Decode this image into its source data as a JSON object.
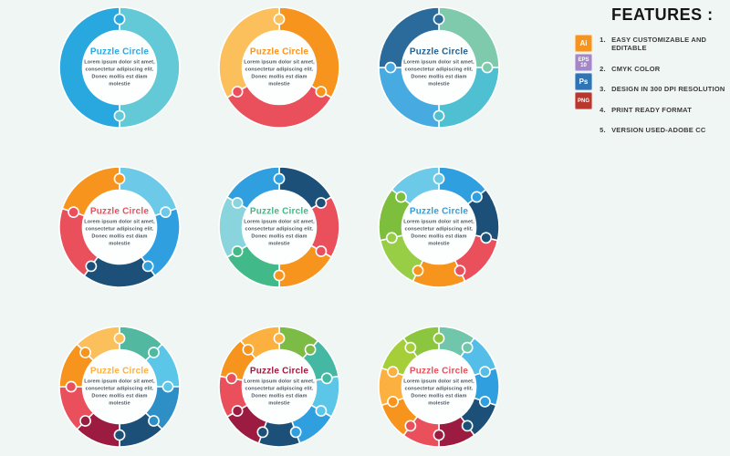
{
  "background_color": "#F0F6F3",
  "circle_text": {
    "title": "Puzzle Circle",
    "body": "Lorem ipsum dolor  sit amet,\nconsectetur adipiscing elit.\nDonec mollis est diam molestie"
  },
  "circles": [
    {
      "name": "puzzle-circle-2-pieces",
      "pieces": 2,
      "title_color": "#29A8E0",
      "colors": [
        "#63C9D6",
        "#29A8E0"
      ]
    },
    {
      "name": "puzzle-circle-3-pieces",
      "pieces": 3,
      "title_color": "#F7941E",
      "colors": [
        "#F7941E",
        "#EA4F5C",
        "#FBC05C"
      ]
    },
    {
      "name": "puzzle-circle-4-pieces",
      "pieces": 4,
      "title_color": "#23608F",
      "colors": [
        "#7FC9AC",
        "#4FBFD2",
        "#47AAE0",
        "#2A6B9C"
      ]
    },
    {
      "name": "puzzle-circle-5-pieces",
      "pieces": 5,
      "title_color": "#EA4F5C",
      "colors": [
        "#6DC9E8",
        "#2F9FE0",
        "#1D5078",
        "#EA4F5C",
        "#F7941E"
      ]
    },
    {
      "name": "puzzle-circle-6-pieces",
      "pieces": 6,
      "title_color": "#41B988",
      "colors": [
        "#1D5078",
        "#EA4F5C",
        "#F7941E",
        "#41B988",
        "#8AD4DE",
        "#2F9FE0"
      ]
    },
    {
      "name": "puzzle-circle-7-pieces",
      "pieces": 7,
      "title_color": "#2F9FE0",
      "colors": [
        "#2F9FE0",
        "#1D5078",
        "#EA4F5C",
        "#F7941E",
        "#97CE45",
        "#7DBE3C",
        "#6DC9E8"
      ]
    },
    {
      "name": "puzzle-circle-8-pieces",
      "pieces": 8,
      "title_color": "#FBB040",
      "colors": [
        "#52B9A0",
        "#5BC6E8",
        "#2E8FC7",
        "#1D5078",
        "#9B1C40",
        "#EA4F5C",
        "#F7941E",
        "#FBC05C"
      ]
    },
    {
      "name": "puzzle-circle-9-pieces",
      "pieces": 9,
      "title_color": "#9B1C40",
      "colors": [
        "#7CBB45",
        "#45B8A4",
        "#5BC6E8",
        "#2F9FE0",
        "#1D5078",
        "#9B1C40",
        "#EA4F5C",
        "#F7941E",
        "#FBB040"
      ]
    },
    {
      "name": "puzzle-circle-10-pieces",
      "pieces": 10,
      "title_color": "#EA4F5C",
      "colors": [
        "#70C5AA",
        "#55BEE8",
        "#2F9FE0",
        "#1D5078",
        "#9B1C40",
        "#EA4F5C",
        "#F7941E",
        "#FBB040",
        "#A6CE39",
        "#8CC63F"
      ]
    }
  ],
  "features": {
    "title": "FEATURES :",
    "format_icons": [
      {
        "name": "ai-icon",
        "label": "Ai",
        "sub": "",
        "bg": "#F7941E",
        "border": "#FCC27E"
      },
      {
        "name": "eps10-icon",
        "label": "EPS",
        "sub": "10",
        "bg": "#A387C9",
        "border": "#C9B6E2"
      },
      {
        "name": "ps-icon",
        "label": "Ps",
        "sub": "",
        "bg": "#2E75B6",
        "border": "#7FA9D4"
      },
      {
        "name": "png-icon",
        "label": "PNG",
        "sub": "",
        "bg": "#B8382E",
        "border": "#D4837D"
      }
    ],
    "items": [
      {
        "num": "1.",
        "label": "EASY CUSTOMIZABLE AND EDITABLE"
      },
      {
        "num": "2.",
        "label": "CMYK COLOR"
      },
      {
        "num": "3.",
        "label": "DESIGN IN 300 DPI RESOLUTION"
      },
      {
        "num": "4.",
        "label": "PRINT READY FORMAT"
      },
      {
        "num": "5.",
        "label": "VERSION USED-ADOBE CC"
      }
    ]
  }
}
